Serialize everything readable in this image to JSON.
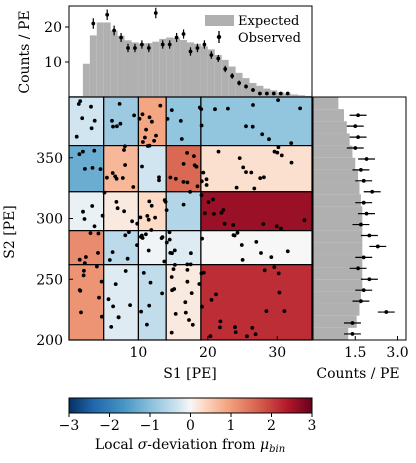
{
  "chart_data": [
    {
      "type": "bar",
      "panel": "top-histogram",
      "ylabel": "Counts / PE",
      "ylim": [
        0,
        26
      ],
      "yticks": [
        10,
        20
      ],
      "x_range": [
        0,
        35
      ],
      "legend": {
        "placement": "top-right",
        "expected_label": "Expected",
        "observed_label": "Observed"
      },
      "expected": {
        "bin_edges": [
          0,
          2,
          3,
          4,
          5,
          6,
          7,
          8,
          9,
          10,
          11,
          12,
          13,
          14,
          15,
          16,
          17,
          18,
          19,
          20,
          21,
          22,
          23,
          24,
          25,
          26,
          27,
          28,
          29,
          30,
          31,
          32,
          33,
          34,
          35
        ],
        "values": [
          0.3,
          9.5,
          17.6,
          21.3,
          21.3,
          19.0,
          17.5,
          16.2,
          15.6,
          15.3,
          15.4,
          15.8,
          16.6,
          17.0,
          16.9,
          16.3,
          15.6,
          15.2,
          14.5,
          13.6,
          12.0,
          10.6,
          8.7,
          6.9,
          5.4,
          4.0,
          3.2,
          2.4,
          1.9,
          1.3,
          1.0,
          0.7,
          0.5,
          0.3
        ]
      },
      "observed": {
        "x": [
          3.5,
          5.5,
          6.5,
          7.5,
          8.5,
          9.5,
          10.5,
          11.5,
          12.5,
          13.5,
          14.5,
          15.5,
          16.5,
          17.5,
          18.5,
          19.5,
          20.5,
          21.5,
          22.5,
          23.5,
          24.5,
          25.5,
          26.5,
          27.5,
          28.5,
          29.5,
          30.5,
          31.5
        ],
        "y": [
          21,
          23.5,
          19,
          17,
          14,
          14,
          15,
          14,
          24,
          15,
          15,
          17,
          18,
          13,
          14,
          15,
          12,
          11,
          8,
          6,
          4,
          3,
          2,
          1,
          1,
          1,
          1,
          1
        ],
        "yerr": [
          1.5,
          1.5,
          1.4,
          1.3,
          1.2,
          1.2,
          1.2,
          1.2,
          1.5,
          1.2,
          1.2,
          1.3,
          1.3,
          1.2,
          1.2,
          1.2,
          1.1,
          1.0,
          0.9,
          0.8,
          0.7,
          0.6,
          0.5,
          0.4,
          0.4,
          0.4,
          0.4,
          0.4
        ]
      }
    },
    {
      "type": "heatmap",
      "panel": "main-scatter",
      "xlabel": "S1 [PE]",
      "ylabel": "S2 [PE]",
      "xlim": [
        0,
        35
      ],
      "ylim": [
        200,
        400
      ],
      "xticks": [
        10,
        20,
        30
      ],
      "yticks": [
        200,
        250,
        300,
        350
      ],
      "bins": [
        {
          "s1": [
            0,
            5
          ],
          "s2": [
            360,
            400
          ],
          "value": -0.3
        },
        {
          "s1": [
            5,
            10
          ],
          "s2": [
            360,
            400
          ],
          "value": -0.8
        },
        {
          "s1": [
            10,
            14
          ],
          "s2": [
            360,
            400
          ],
          "value": 0.9
        },
        {
          "s1": [
            14,
            19
          ],
          "s2": [
            360,
            400
          ],
          "value": -0.9
        },
        {
          "s1": [
            19,
            35
          ],
          "s2": [
            360,
            400
          ],
          "value": -0.9
        },
        {
          "s1": [
            0,
            5
          ],
          "s2": [
            322,
            360
          ],
          "value": -1.3
        },
        {
          "s1": [
            5,
            10
          ],
          "s2": [
            322,
            360
          ],
          "value": 0.7
        },
        {
          "s1": [
            10,
            14
          ],
          "s2": [
            322,
            360
          ],
          "value": -0.3
        },
        {
          "s1": [
            14,
            19
          ],
          "s2": [
            322,
            360
          ],
          "value": 1.6
        },
        {
          "s1": [
            19,
            35
          ],
          "s2": [
            322,
            360
          ],
          "value": 0.25
        },
        {
          "s1": [
            0,
            5
          ],
          "s2": [
            290,
            322
          ],
          "value": -0.1
        },
        {
          "s1": [
            5,
            10
          ],
          "s2": [
            290,
            322
          ],
          "value": 0.15
        },
        {
          "s1": [
            10,
            14
          ],
          "s2": [
            290,
            322
          ],
          "value": 0.3
        },
        {
          "s1": [
            14,
            19
          ],
          "s2": [
            290,
            322
          ],
          "value": -0.6
        },
        {
          "s1": [
            19,
            35
          ],
          "s2": [
            290,
            322
          ],
          "value": 2.6
        },
        {
          "s1": [
            0,
            5
          ],
          "s2": [
            262,
            290
          ],
          "value": 1.2
        },
        {
          "s1": [
            5,
            10
          ],
          "s2": [
            262,
            290
          ],
          "value": -0.5
        },
        {
          "s1": [
            10,
            14
          ],
          "s2": [
            262,
            290
          ],
          "value": -0.05
        },
        {
          "s1": [
            14,
            19
          ],
          "s2": [
            262,
            290
          ],
          "value": -0.2
        },
        {
          "s1": [
            19,
            35
          ],
          "s2": [
            262,
            290
          ],
          "value": 0.0
        },
        {
          "s1": [
            0,
            5
          ],
          "s2": [
            200,
            262
          ],
          "value": 1.1
        },
        {
          "s1": [
            5,
            10
          ],
          "s2": [
            200,
            262
          ],
          "value": -0.2
        },
        {
          "s1": [
            10,
            14
          ],
          "s2": [
            200,
            262
          ],
          "value": -0.45
        },
        {
          "s1": [
            14,
            19
          ],
          "s2": [
            200,
            262
          ],
          "value": 0.15
        },
        {
          "s1": [
            19,
            35
          ],
          "s2": [
            200,
            262
          ],
          "value": 2.2
        }
      ],
      "points_note_count": 220
    },
    {
      "type": "bar",
      "panel": "right-histogram",
      "orientation": "horizontal",
      "xlabel": "Counts / PE",
      "xlim": [
        0,
        3.3
      ],
      "xticks": [
        1.5,
        3.0
      ],
      "ylim": [
        200,
        400
      ],
      "expected": {
        "bin_edges": [
          200,
          210,
          220,
          230,
          240,
          250,
          260,
          270,
          280,
          290,
          300,
          310,
          320,
          330,
          340,
          350,
          360,
          370,
          380,
          390,
          400
        ],
        "values": [
          1.25,
          1.55,
          1.65,
          1.7,
          1.75,
          1.75,
          1.75,
          1.75,
          1.75,
          1.75,
          1.75,
          1.7,
          1.65,
          1.6,
          1.5,
          1.4,
          1.3,
          1.2,
          1.1,
          0.9
        ]
      },
      "observed": {
        "y": [
          205,
          214,
          223,
          232,
          241,
          250,
          259,
          268,
          277,
          286,
          295,
          304,
          313,
          322,
          331,
          340,
          349,
          358,
          367,
          376,
          385
        ],
        "x": [
          1.4,
          1.4,
          2.6,
          1.7,
          1.8,
          2.0,
          1.6,
          1.8,
          2.3,
          2.0,
          1.7,
          1.9,
          1.8,
          2.1,
          1.8,
          1.7,
          1.9,
          1.5,
          1.6,
          1.5,
          1.6
        ],
        "xerr": [
          0.3,
          0.3,
          0.3,
          0.3,
          0.3,
          0.3,
          0.3,
          0.3,
          0.3,
          0.3,
          0.3,
          0.3,
          0.3,
          0.3,
          0.3,
          0.3,
          0.3,
          0.3,
          0.3,
          0.3,
          0.3
        ]
      }
    },
    {
      "type": "colorbar",
      "panel": "colorbar",
      "label": "Local σ-deviation from μbin",
      "label_main": "Local ",
      "label_sigma": "σ",
      "label_mid": "-deviation from ",
      "label_mu": "μ",
      "label_sub": "bin",
      "range": [
        -3,
        3
      ],
      "ticks": [
        "−3",
        "−2",
        "−1",
        "0",
        "1",
        "2",
        "3"
      ],
      "cmap": "RdBu_r"
    }
  ],
  "colors": {
    "expected_fill": "#b0b0b0",
    "observed_marker": "#000000",
    "cell_border": "#000000"
  }
}
